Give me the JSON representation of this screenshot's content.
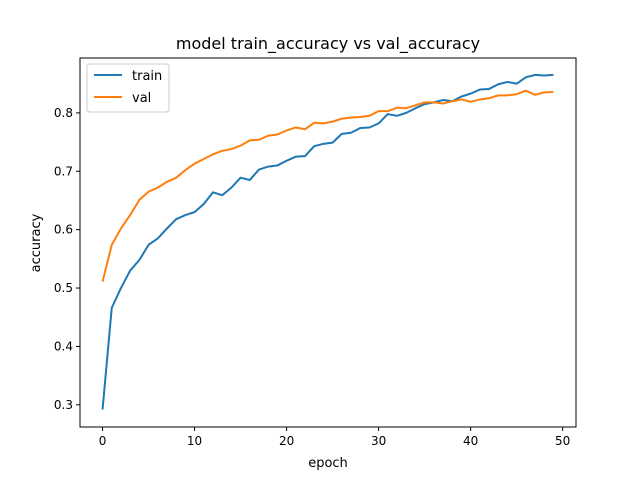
{
  "chart_data": {
    "type": "line",
    "title": "model train_accuracy vs val_accuracy",
    "xlabel": "epoch",
    "ylabel": "accuracy",
    "xlim": [
      -2.45,
      51.45
    ],
    "ylim": [
      0.262,
      0.894
    ],
    "xticks": [
      0,
      10,
      20,
      30,
      40,
      50
    ],
    "yticks": [
      0.3,
      0.4,
      0.5,
      0.6,
      0.7,
      0.8
    ],
    "grid": false,
    "legend_position": "top-left",
    "x": [
      0,
      1,
      2,
      3,
      4,
      5,
      6,
      7,
      8,
      9,
      10,
      11,
      12,
      13,
      14,
      15,
      16,
      17,
      18,
      19,
      20,
      21,
      22,
      23,
      24,
      25,
      26,
      27,
      28,
      29,
      30,
      31,
      32,
      33,
      34,
      35,
      36,
      37,
      38,
      39,
      40,
      41,
      42,
      43,
      44,
      45,
      46,
      47,
      48,
      49
    ],
    "series": [
      {
        "name": "train",
        "color": "#1f77b4",
        "values": [
          0.292,
          0.466,
          0.5,
          0.53,
          0.548,
          0.574,
          0.585,
          0.602,
          0.618,
          0.625,
          0.63,
          0.644,
          0.664,
          0.659,
          0.672,
          0.689,
          0.685,
          0.703,
          0.708,
          0.71,
          0.718,
          0.725,
          0.726,
          0.743,
          0.747,
          0.749,
          0.764,
          0.766,
          0.774,
          0.775,
          0.782,
          0.798,
          0.795,
          0.8,
          0.808,
          0.815,
          0.818,
          0.822,
          0.82,
          0.828,
          0.833,
          0.84,
          0.841,
          0.849,
          0.853,
          0.85,
          0.861,
          0.865,
          0.864,
          0.865
        ]
      },
      {
        "name": "val",
        "color": "#ff7f0e",
        "values": [
          0.511,
          0.574,
          0.602,
          0.625,
          0.651,
          0.665,
          0.672,
          0.682,
          0.689,
          0.702,
          0.713,
          0.721,
          0.729,
          0.735,
          0.738,
          0.744,
          0.753,
          0.754,
          0.761,
          0.763,
          0.77,
          0.775,
          0.772,
          0.783,
          0.782,
          0.785,
          0.79,
          0.792,
          0.793,
          0.795,
          0.803,
          0.803,
          0.809,
          0.808,
          0.813,
          0.818,
          0.818,
          0.816,
          0.82,
          0.823,
          0.819,
          0.823,
          0.825,
          0.83,
          0.83,
          0.832,
          0.838,
          0.831,
          0.835,
          0.836
        ]
      }
    ]
  }
}
